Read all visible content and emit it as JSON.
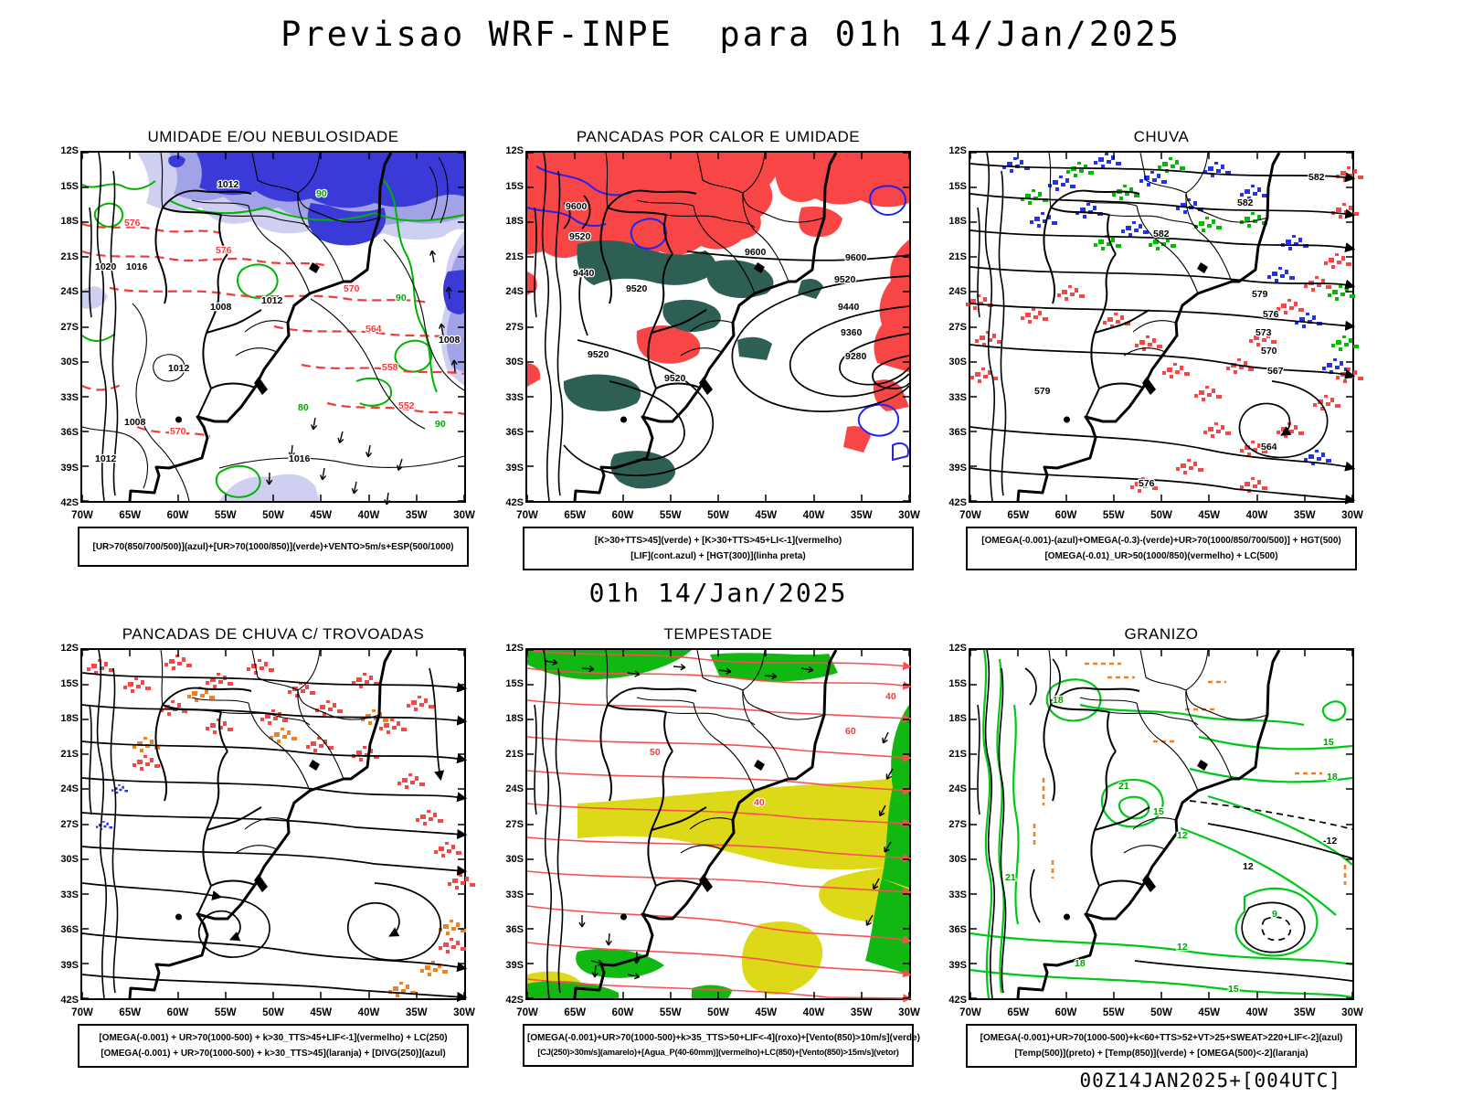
{
  "header": {
    "title": "Previsao WRF-INPE  para 01h 14/Jan/2025"
  },
  "subtitle": "01h 14/Jan/2025",
  "footer": "00Z14JAN2025+[004UTC]",
  "axes": {
    "lat": [
      "12S",
      "15S",
      "18S",
      "21S",
      "24S",
      "27S",
      "30S",
      "33S",
      "36S",
      "39S",
      "42S"
    ],
    "lon": [
      "70W",
      "65W",
      "60W",
      "55W",
      "50W",
      "45W",
      "40W",
      "35W",
      "30W"
    ]
  },
  "colors": {
    "humidity_blue": "#3a3ad8",
    "humidity_lavender": "#a2a2e6",
    "humidity_pale": "#cfcff2",
    "green_contour": "#00b400",
    "red_fill": "#f84545",
    "teal_fill": "#2e5f55",
    "blue_line": "#2323ee",
    "jet_yellow": "#ddd818",
    "orange": "#f08020",
    "black": "#000000"
  },
  "chart_data": [
    {
      "type": "heatmap",
      "title": "UMIDADE E/OU NEBULOSIDADE",
      "xlabel": "longitude",
      "ylabel": "latitude",
      "x_ticks": [
        "70W",
        "65W",
        "60W",
        "55W",
        "50W",
        "45W",
        "40W",
        "35W",
        "30W"
      ],
      "y_ticks": [
        "12S",
        "15S",
        "18S",
        "21S",
        "24S",
        "27S",
        "30S",
        "33S",
        "36S",
        "39S",
        "42S"
      ],
      "legend": "[UR>70(850/700/500)](azul)+[UR>70(1000/850)](verde)+VENTO>5m/s+ESP(500/1000)",
      "contour_labels": [
        "1012",
        "1020",
        "1016",
        "1008",
        "576",
        "570",
        "564",
        "558",
        "552",
        "90",
        "80"
      ]
    },
    {
      "type": "heatmap",
      "title": "PANCADAS POR CALOR E UMIDADE",
      "xlabel": "longitude",
      "ylabel": "latitude",
      "x_ticks": [
        "70W",
        "65W",
        "60W",
        "55W",
        "50W",
        "45W",
        "40W",
        "35W",
        "30W"
      ],
      "y_ticks": [
        "12S",
        "15S",
        "18S",
        "21S",
        "24S",
        "27S",
        "30S",
        "33S",
        "36S",
        "39S",
        "42S"
      ],
      "legend": "[K>30+TTS>45](verde) + [K>30+TTS>45+LI<-1](vermelho); [LIF](cont.azul) + [HGT(300)](linha preta)",
      "contour_labels": [
        "9600",
        "9520",
        "9440",
        "9360",
        "9280"
      ]
    },
    {
      "type": "heatmap",
      "title": "CHUVA",
      "xlabel": "longitude",
      "ylabel": "latitude",
      "x_ticks": [
        "70W",
        "65W",
        "60W",
        "55W",
        "50W",
        "45W",
        "40W",
        "35W",
        "30W"
      ],
      "y_ticks": [
        "12S",
        "15S",
        "18S",
        "21S",
        "24S",
        "27S",
        "30S",
        "33S",
        "36S",
        "39S",
        "42S"
      ],
      "legend": "[OMEGA(-0.001)-(azul)+OMEGA(-0.3)-(verde)+UR>70(1000/850/700/500)] + HGT(500); [OMEGA(-0.01)_UR>50(1000/850)(vermelho) + LC(500)",
      "contour_labels": [
        "582",
        "579",
        "576",
        "573",
        "570",
        "567",
        "564"
      ]
    },
    {
      "type": "heatmap",
      "title": "PANCADAS DE CHUVA C/ TROVOADAS",
      "xlabel": "longitude",
      "ylabel": "latitude",
      "x_ticks": [
        "70W",
        "65W",
        "60W",
        "55W",
        "50W",
        "45W",
        "40W",
        "35W",
        "30W"
      ],
      "y_ticks": [
        "12S",
        "15S",
        "18S",
        "21S",
        "24S",
        "27S",
        "30S",
        "33S",
        "36S",
        "39S",
        "42S"
      ],
      "legend": "[OMEGA(-0.001) + UR>70(1000-500) + k>30_TTS>45+LIF<-1](vermelho) + LC(250); [OMEGA(-0.001) + UR>70(1000-500) + k>30_TTS>45](laranja) + [DIVG(250)](azul)",
      "contour_labels": []
    },
    {
      "type": "heatmap",
      "title": "TEMPESTADE",
      "xlabel": "longitude",
      "ylabel": "latitude",
      "x_ticks": [
        "70W",
        "65W",
        "60W",
        "55W",
        "50W",
        "45W",
        "40W",
        "35W",
        "30W"
      ],
      "y_ticks": [
        "12S",
        "15S",
        "18S",
        "21S",
        "24S",
        "27S",
        "30S",
        "33S",
        "36S",
        "39S",
        "42S"
      ],
      "legend": "[OMEGA(-0.001)+UR>70(1000-500)+k>35_TTS>50+LIF<-4](roxo)+[Vento(850)>10m/s](verde); [CJ(250)>30m/s](amarelo)+[Agua_P(40-60mm)](vermelho)+LC(850)+[Vento(850)>15m/s](vetor)",
      "contour_labels": [
        "40",
        "50",
        "60"
      ]
    },
    {
      "type": "heatmap",
      "title": "GRANIZO",
      "xlabel": "longitude",
      "ylabel": "latitude",
      "x_ticks": [
        "70W",
        "65W",
        "60W",
        "55W",
        "50W",
        "45W",
        "40W",
        "35W",
        "30W"
      ],
      "y_ticks": [
        "12S",
        "15S",
        "18S",
        "21S",
        "24S",
        "27S",
        "30S",
        "33S",
        "36S",
        "39S",
        "42S"
      ],
      "legend": "[OMEGA(-0.001)+UR>70(1000-500)+k<60+TTS>52+VT>25+SWEAT>220+LIF<-2](azul); [Temp(500)](preto) + [Temp(850)](verde) + [OMEGA(500)<-2](laranja)",
      "contour_labels": [
        "18",
        "21",
        "15",
        "12",
        "9",
        "-12"
      ]
    }
  ],
  "panels": [
    {
      "title": "UMIDADE E/OU NEBULOSIDADE",
      "caption_lines": [
        "[UR>70(850/700/500)](azul)+[UR>70(1000/850)](verde)+VENTO>5m/s+ESP(500/1000)"
      ],
      "labels": [
        "1012",
        "1020",
        "1016",
        "1008",
        "1012",
        "1012",
        "1008",
        "1016",
        "1012",
        "1008",
        "576",
        "576",
        "570",
        "564",
        "558",
        "552",
        "570",
        "90",
        "90",
        "90",
        "80"
      ]
    },
    {
      "title": "PANCADAS POR CALOR E UMIDADE",
      "caption_lines": [
        "[K>30+TTS>45](verde) + [K>30+TTS>45+LI<-1](vermelho)",
        "[LIF](cont.azul) + [HGT(300)](linha preta)"
      ],
      "labels": [
        "9600",
        "9520",
        "9440",
        "9520",
        "9600",
        "9600",
        "9520",
        "9440",
        "9360",
        "9280",
        "9520",
        "9520"
      ]
    },
    {
      "title": "CHUVA",
      "caption_lines": [
        "[OMEGA(-0.001)-(azul)+OMEGA(-0.3)-(verde)+UR>70(1000/850/700/500)] + HGT(500)",
        "[OMEGA(-0.01)_UR>50(1000/850)(vermelho) + LC(500)"
      ],
      "labels": [
        "582",
        "582",
        "582",
        "579",
        "576",
        "573",
        "570",
        "567",
        "579",
        "564",
        "576"
      ]
    },
    {
      "title": "PANCADAS DE CHUVA C/ TROVOADAS",
      "caption_lines": [
        "[OMEGA(-0.001) + UR>70(1000-500) + k>30_TTS>45+LIF<-1](vermelho) + LC(250)",
        "[OMEGA(-0.001) + UR>70(1000-500) + k>30_TTS>45](laranja) + [DIVG(250)](azul)"
      ],
      "labels": []
    },
    {
      "title": "TEMPESTADE",
      "caption_lines": [
        "[OMEGA(-0.001)+UR>70(1000-500)+k>35_TTS>50+LIF<-4](roxo)+[Vento(850)>10m/s](verde)",
        "[CJ(250)>30m/s](amarelo)+[Agua_P(40-60mm)](vermelho)+LC(850)+[Vento(850)>15m/s](vetor)"
      ],
      "labels": [
        "50",
        "40",
        "60",
        "40"
      ]
    },
    {
      "title": "GRANIZO",
      "caption_lines": [
        "[OMEGA(-0.001)+UR>70(1000-500)+k<60+TTS>52+VT>25+SWEAT>220+LIF<-2](azul)",
        "[Temp(500)](preto) + [Temp(850)](verde) + [OMEGA(500)<-2](laranja)"
      ],
      "labels": [
        "18",
        "21",
        "15",
        "12",
        "15",
        "18",
        "21",
        "18",
        "12",
        "15",
        "9",
        "-12",
        "12"
      ]
    }
  ]
}
